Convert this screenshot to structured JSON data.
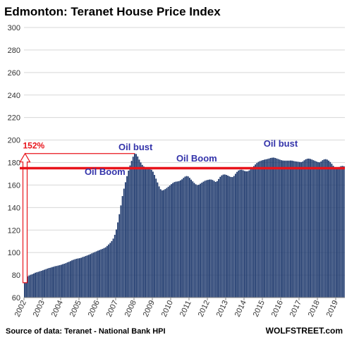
{
  "chart_data": {
    "type": "bar",
    "title": "Edmonton: Teranet House Price Index",
    "xlabel": "",
    "ylabel": "",
    "ylim": [
      60,
      300
    ],
    "yticks": [
      60,
      80,
      100,
      120,
      140,
      160,
      180,
      200,
      220,
      240,
      260,
      280,
      300
    ],
    "grid": true,
    "x_tick_labels": [
      "2002",
      "2003",
      "2004",
      "2005",
      "2006",
      "2007",
      "2008",
      "2009",
      "2010",
      "2011",
      "2012",
      "2013",
      "2014",
      "2015",
      "2016",
      "2017",
      "2018",
      "2019"
    ],
    "start_month": "2002-01",
    "values": [
      73.2,
      75.3,
      78.9,
      79.6,
      80.3,
      80.8,
      81.4,
      82.1,
      82.5,
      82.9,
      83.4,
      83.8,
      84.3,
      84.8,
      85.3,
      85.8,
      86.3,
      86.6,
      87.1,
      87.4,
      87.9,
      88.1,
      88.5,
      88.8,
      89.2,
      89.7,
      90.1,
      90.6,
      91.3,
      91.8,
      92.4,
      93.1,
      93.6,
      94.1,
      94.5,
      94.8,
      95.0,
      95.4,
      96.0,
      96.4,
      97.0,
      97.5,
      98.0,
      98.6,
      99.3,
      99.9,
      100.5,
      101.1,
      101.7,
      102.2,
      102.8,
      103.3,
      104.0,
      104.7,
      105.9,
      107.2,
      108.6,
      110.2,
      112.4,
      115.8,
      120.5,
      126.8,
      134.1,
      141.9,
      150.2,
      156.8,
      162.5,
      167.9,
      172.8,
      177.4,
      181.5,
      185.2,
      188.0,
      187.6,
      185.4,
      182.6,
      180.1,
      177.9,
      176.5,
      175.6,
      175.1,
      174.8,
      174.3,
      173.6,
      171.9,
      169.0,
      165.7,
      162.3,
      158.8,
      156.3,
      155.2,
      155.6,
      156.4,
      157.4,
      158.5,
      159.6,
      160.8,
      161.8,
      162.6,
      163.0,
      163.2,
      163.5,
      164.2,
      165.1,
      166.4,
      167.5,
      168.0,
      167.7,
      166.4,
      164.8,
      163.3,
      161.9,
      160.7,
      160.0,
      160.3,
      161.2,
      162.1,
      163.0,
      163.8,
      164.3,
      164.6,
      164.9,
      164.9,
      164.5,
      163.7,
      162.8,
      163.5,
      165.4,
      167.3,
      168.6,
      169.3,
      169.4,
      169.0,
      168.4,
      167.7,
      167.2,
      167.1,
      168.1,
      170.0,
      171.7,
      172.9,
      173.5,
      173.6,
      173.1,
      172.5,
      172.2,
      172.3,
      173.0,
      174.0,
      175.4,
      176.9,
      178.3,
      179.6,
      180.6,
      181.3,
      181.8,
      182.2,
      182.6,
      182.9,
      183.2,
      183.6,
      184.1,
      184.3,
      184.4,
      184.1,
      183.6,
      183.1,
      182.6,
      182.1,
      181.8,
      181.7,
      181.7,
      181.7,
      181.7,
      181.8,
      181.7,
      181.4,
      181.1,
      180.9,
      180.7,
      180.5,
      180.4,
      180.9,
      182.0,
      182.9,
      183.4,
      183.5,
      183.2,
      182.7,
      182.1,
      181.5,
      180.9,
      180.4,
      180.2,
      181.0,
      182.1,
      182.8,
      183.0,
      182.6,
      181.7,
      180.5,
      178.9,
      177.1,
      175.9,
      175.3,
      175.4,
      176.1,
      176.8,
      177.0,
      176.7
    ],
    "reference_line": {
      "value": 175,
      "color": "#e8141b"
    },
    "change_label": "152%",
    "annotations": [
      {
        "text": "Oil Boom",
        "x_month": "2006-06",
        "y": 169
      },
      {
        "text": "Oil bust",
        "x_month": "2008-02",
        "y": 191
      },
      {
        "text": "Oil Boom",
        "x_month": "2011-06",
        "y": 181
      },
      {
        "text": "Oil bust",
        "x_month": "2016-01",
        "y": 194
      }
    ],
    "bar_color": "#1f3a6e",
    "highlight_color": "#e8141b"
  },
  "footer": {
    "source": "Source of data: Teranet - National Bank HPI",
    "brand": "WOLFSTREET.com"
  }
}
